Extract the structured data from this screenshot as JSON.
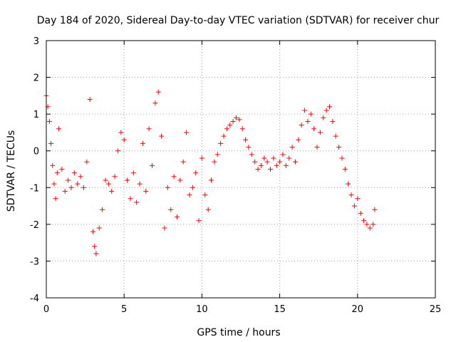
{
  "chart_data": {
    "type": "scatter",
    "title": "Day 184 of 2020, Sidereal Day-to-day VTEC variation (SDTVAR) for receiver chur",
    "xlabel": "GPS time / hours",
    "ylabel": "SDTVAR / TECUs",
    "xlim": [
      0,
      25
    ],
    "ylim": [
      -4,
      3
    ],
    "xticks": [
      0,
      5,
      10,
      15,
      20,
      25
    ],
    "yticks": [
      3,
      2,
      1,
      0,
      -1,
      -2,
      -3,
      -4
    ],
    "grid": true,
    "marker": "+",
    "color": "#ff0000",
    "series": [
      {
        "name": "SDTVAR",
        "x": [
          0.0,
          0.1,
          0.2,
          0.3,
          0.4,
          0.5,
          0.6,
          0.7,
          0.8,
          1.0,
          1.2,
          1.4,
          1.6,
          1.8,
          2.0,
          2.2,
          2.4,
          2.6,
          2.8,
          3.0,
          3.1,
          3.2,
          3.4,
          3.6,
          3.8,
          4.0,
          4.2,
          4.4,
          4.6,
          4.8,
          5.0,
          5.2,
          5.4,
          5.6,
          5.8,
          6.0,
          6.2,
          6.4,
          6.6,
          6.8,
          7.0,
          7.2,
          7.4,
          7.6,
          7.8,
          8.0,
          8.2,
          8.4,
          8.6,
          8.8,
          9.0,
          9.2,
          9.4,
          9.6,
          9.8,
          10.0,
          10.2,
          10.4,
          10.6,
          10.8,
          11.0,
          11.2,
          11.4,
          11.6,
          11.8,
          12.0,
          12.2,
          12.4,
          12.6,
          12.8,
          13.0,
          13.2,
          13.4,
          13.6,
          13.8,
          14.0,
          14.2,
          14.4,
          14.6,
          14.8,
          15.0,
          15.2,
          15.4,
          15.6,
          15.8,
          16.0,
          16.2,
          16.4,
          16.6,
          16.8,
          17.0,
          17.2,
          17.4,
          17.6,
          17.8,
          18.0,
          18.2,
          18.4,
          18.6,
          18.8,
          19.0,
          19.2,
          19.4,
          19.6,
          19.8,
          20.0,
          20.2,
          20.4,
          20.6,
          20.8,
          21.0,
          21.1
        ],
        "y": [
          1.5,
          1.2,
          0.8,
          0.2,
          -0.4,
          -0.9,
          -1.3,
          -0.6,
          0.6,
          -0.5,
          -1.1,
          -0.8,
          -1.0,
          -0.6,
          -0.9,
          -0.7,
          -1.0,
          -0.3,
          1.4,
          -2.2,
          -2.6,
          -2.8,
          -2.1,
          -1.6,
          -0.8,
          -0.9,
          -1.1,
          -0.7,
          0.0,
          0.5,
          0.3,
          -0.8,
          -1.3,
          -0.6,
          -1.4,
          -0.9,
          0.2,
          -1.1,
          0.6,
          -0.4,
          1.3,
          1.6,
          0.4,
          -2.1,
          -1.0,
          -1.6,
          -0.7,
          -1.8,
          -0.8,
          -0.3,
          0.5,
          -1.2,
          -1.0,
          -0.6,
          -1.9,
          -0.2,
          -1.2,
          -1.6,
          -0.8,
          -0.3,
          -0.1,
          0.2,
          0.4,
          0.6,
          0.7,
          0.8,
          0.9,
          0.85,
          0.6,
          0.3,
          0.1,
          -0.1,
          -0.3,
          -0.5,
          -0.4,
          -0.2,
          -0.3,
          -0.5,
          -0.2,
          -0.4,
          -0.3,
          -0.1,
          -0.4,
          -0.2,
          0.1,
          -0.3,
          0.3,
          0.7,
          1.1,
          0.8,
          1.0,
          0.6,
          0.1,
          0.5,
          0.9,
          1.1,
          1.2,
          0.8,
          0.4,
          0.1,
          -0.2,
          -0.5,
          -0.9,
          -1.2,
          -1.5,
          -1.3,
          -1.7,
          -1.9,
          -2.0,
          -2.1,
          -2.0,
          -1.6
        ]
      }
    ]
  }
}
